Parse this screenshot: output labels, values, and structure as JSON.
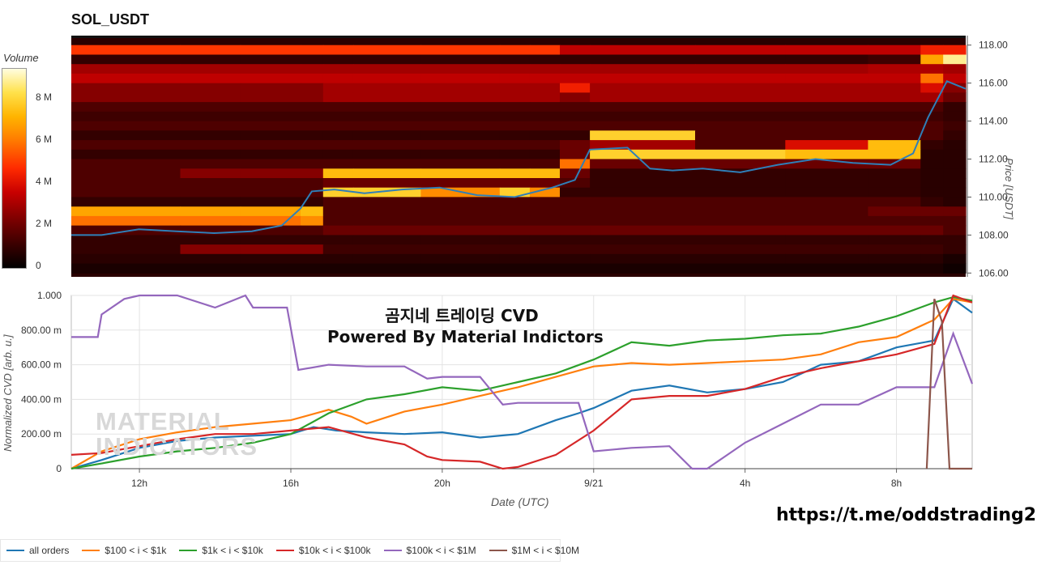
{
  "title": "SOL_USDT",
  "colorbar": {
    "title": "Volume",
    "ticks": [
      "8 M",
      "6 M",
      "4 M",
      "2 M",
      "0"
    ],
    "tick_values": [
      8,
      6,
      4,
      2,
      0
    ],
    "max": 9.6
  },
  "price_axis": {
    "title": "Price [USDT]",
    "ticks": [
      "118.00",
      "116.00",
      "114.00",
      "112.00",
      "110.00",
      "108.00",
      "106.00"
    ]
  },
  "cvd_axis": {
    "title": "Normalized CVD [arb. u.]",
    "ticks": [
      "1.000",
      "800.00 m",
      "600.00 m",
      "400.00 m",
      "200.00 m",
      "0"
    ]
  },
  "x_axis": {
    "title": "Date (UTC)",
    "ticks": [
      "12h",
      "16h",
      "20h",
      "9/21",
      "4h",
      "8h"
    ]
  },
  "overlay": {
    "line1": "곰지네 트레이딩 CVD",
    "line2": "Powered By Material Indictors"
  },
  "watermark": {
    "line1": "MATERIAL",
    "line2": "INDICATORS"
  },
  "footer_url": "https://t.me/oddstrading2",
  "legend": [
    {
      "label": "all orders",
      "color": "#1f77b4"
    },
    {
      "label": "$100 < i < $1k",
      "color": "#ff7f0e"
    },
    {
      "label": "$1k < i < $10k",
      "color": "#2ca02c"
    },
    {
      "label": "$10k < i < $100k",
      "color": "#d62728"
    },
    {
      "label": "$100k < i < $1M",
      "color": "#9467bd"
    },
    {
      "label": "$1M < i < $10M",
      "color": "#8c564b"
    }
  ],
  "chart_data": [
    {
      "type": "heatmap",
      "title": "SOL_USDT",
      "x_ticks": [
        "12h",
        "16h",
        "20h",
        "9/21",
        "4h",
        "8h"
      ],
      "x_range_hours": [
        10.2,
        34.0
      ],
      "y_range": [
        105.8,
        118.5
      ],
      "ylabel": "Price [USDT]",
      "color_scale": "black-red-yellow-white",
      "price_bands": [
        117.75,
        117.25,
        116.75,
        116.25,
        115.75,
        115.25,
        114.75,
        114.25,
        113.75,
        113.25,
        112.75,
        112.25,
        111.75,
        111.25,
        110.75,
        110.25,
        109.75,
        109.25,
        108.75,
        108.25,
        107.75,
        107.25,
        106.75,
        106.25
      ],
      "segments_hours": [
        10.2,
        13.1,
        14.7,
        16.3,
        16.9,
        17.7,
        19.5,
        21.6,
        22.4,
        23.2,
        24.0,
        26.8,
        29.2,
        31.4,
        32.8,
        33.4,
        34.0
      ],
      "volume_millions": [
        [
          5.0,
          5.0,
          5.0,
          5.0,
          5.0,
          5.0,
          5.0,
          5.0,
          5.0,
          3.5,
          3.5,
          3.5,
          3.5,
          3.5,
          4.5,
          4.5
        ],
        [
          1.0,
          1.0,
          1.0,
          1.0,
          1.0,
          1.0,
          1.0,
          1.0,
          1.0,
          1.0,
          1.0,
          1.0,
          1.0,
          1.2,
          7.0,
          9.0
        ],
        [
          3.0,
          3.0,
          3.0,
          3.0,
          3.0,
          3.0,
          3.0,
          3.0,
          3.0,
          3.0,
          3.0,
          3.0,
          3.0,
          3.2,
          3.2,
          3.0
        ],
        [
          3.5,
          3.5,
          3.5,
          3.5,
          3.5,
          3.5,
          3.5,
          3.5,
          3.5,
          3.5,
          3.5,
          3.5,
          3.5,
          3.5,
          6.0,
          3.5
        ],
        [
          2.5,
          2.5,
          2.5,
          2.5,
          3.0,
          3.0,
          3.0,
          3.0,
          3.0,
          4.5,
          3.0,
          3.0,
          3.0,
          3.0,
          4.0,
          2.5
        ],
        [
          2.5,
          2.5,
          2.5,
          2.5,
          3.0,
          3.0,
          3.0,
          3.0,
          3.0,
          2.5,
          3.0,
          3.0,
          3.0,
          3.0,
          3.0,
          2.0
        ],
        [
          1.5,
          1.5,
          1.5,
          1.5,
          1.5,
          1.5,
          1.5,
          1.5,
          1.5,
          1.5,
          1.5,
          1.5,
          1.5,
          1.5,
          1.5,
          1.0
        ],
        [
          1.2,
          1.2,
          1.2,
          1.2,
          1.2,
          1.2,
          1.2,
          1.2,
          1.2,
          1.2,
          1.2,
          1.2,
          1.2,
          1.2,
          1.2,
          1.0
        ],
        [
          1.5,
          1.5,
          1.5,
          1.5,
          1.5,
          1.5,
          1.5,
          1.5,
          1.5,
          1.5,
          1.5,
          1.5,
          1.5,
          1.5,
          1.5,
          1.2
        ],
        [
          1.0,
          1.0,
          1.0,
          1.0,
          1.0,
          1.0,
          1.0,
          1.0,
          1.0,
          1.0,
          8.0,
          1.5,
          1.5,
          1.5,
          1.5,
          1.0
        ],
        [
          1.5,
          1.5,
          1.5,
          1.5,
          1.5,
          1.5,
          1.5,
          1.5,
          1.5,
          2.0,
          3.0,
          1.5,
          4.0,
          7.5,
          1.0,
          0.8
        ],
        [
          1.0,
          1.0,
          1.0,
          1.0,
          1.0,
          1.0,
          1.0,
          1.0,
          1.0,
          2.0,
          8.0,
          8.0,
          7.5,
          7.5,
          0.8,
          0.8
        ],
        [
          1.5,
          1.5,
          1.5,
          1.5,
          1.5,
          1.5,
          1.5,
          1.5,
          1.5,
          6.0,
          2.0,
          2.0,
          2.0,
          2.0,
          0.8,
          0.8
        ],
        [
          1.5,
          2.5,
          2.5,
          2.5,
          7.5,
          7.5,
          7.5,
          7.5,
          7.5,
          2.0,
          1.0,
          1.0,
          1.0,
          1.0,
          0.8,
          0.8
        ],
        [
          1.5,
          1.5,
          1.5,
          1.5,
          2.0,
          2.0,
          2.0,
          2.0,
          2.0,
          1.5,
          1.0,
          1.0,
          1.0,
          1.0,
          0.8,
          0.8
        ],
        [
          1.5,
          1.5,
          1.5,
          1.5,
          8.0,
          8.0,
          6.5,
          8.0,
          6.5,
          1.0,
          1.0,
          1.0,
          1.0,
          1.0,
          0.8,
          0.8
        ],
        [
          1.0,
          1.0,
          1.0,
          1.0,
          1.5,
          1.5,
          1.5,
          1.5,
          1.5,
          1.5,
          1.5,
          1.5,
          1.5,
          1.5,
          1.0,
          0.8
        ],
        [
          7.0,
          7.0,
          7.0,
          7.5,
          1.5,
          1.5,
          1.5,
          1.5,
          1.5,
          1.5,
          1.5,
          1.5,
          1.5,
          2.0,
          2.0,
          2.0
        ],
        [
          6.0,
          6.0,
          6.0,
          6.5,
          1.5,
          1.5,
          1.5,
          1.5,
          1.5,
          1.5,
          1.5,
          1.5,
          1.5,
          1.5,
          1.5,
          1.5
        ],
        [
          1.5,
          1.5,
          1.5,
          1.5,
          2.0,
          2.0,
          2.0,
          2.0,
          2.0,
          2.0,
          2.0,
          2.0,
          2.0,
          2.0,
          2.0,
          1.5
        ],
        [
          1.0,
          1.0,
          1.0,
          1.0,
          1.0,
          1.0,
          1.0,
          1.0,
          1.0,
          1.0,
          1.0,
          1.0,
          1.0,
          1.0,
          1.0,
          1.0
        ],
        [
          1.0,
          2.5,
          2.5,
          2.5,
          1.2,
          1.2,
          1.2,
          1.2,
          1.2,
          1.2,
          1.2,
          1.2,
          1.2,
          1.2,
          1.2,
          1.0
        ],
        [
          0.8,
          0.8,
          0.8,
          0.8,
          0.8,
          0.8,
          0.8,
          0.8,
          0.8,
          0.8,
          0.8,
          0.8,
          0.8,
          0.8,
          0.8,
          0.5
        ],
        [
          0.5,
          0.5,
          0.5,
          0.5,
          0.5,
          0.5,
          0.5,
          0.5,
          0.5,
          0.5,
          0.5,
          0.5,
          0.5,
          0.5,
          0.5,
          0.3
        ]
      ],
      "price_line": {
        "name": "price",
        "x_hours": [
          10.2,
          11.0,
          12.0,
          13.0,
          14.0,
          15.0,
          15.8,
          16.3,
          16.6,
          17.2,
          18.0,
          19.0,
          20.0,
          21.0,
          22.0,
          23.0,
          23.6,
          24.0,
          25.0,
          25.6,
          26.2,
          27.0,
          28.0,
          29.0,
          30.0,
          31.0,
          32.0,
          32.6,
          33.0,
          33.5,
          34.0
        ],
        "price": [
          108.0,
          108.0,
          108.3,
          108.2,
          108.1,
          108.2,
          108.5,
          109.4,
          110.3,
          110.4,
          110.2,
          110.4,
          110.5,
          110.1,
          110.0,
          110.5,
          110.9,
          112.5,
          112.6,
          111.5,
          111.4,
          111.5,
          111.3,
          111.7,
          112.0,
          111.8,
          111.7,
          112.3,
          114.2,
          116.1,
          115.7
        ],
        "color": "#2f7fb8"
      }
    },
    {
      "type": "line",
      "xlabel": "Date (UTC)",
      "ylabel": "Normalized CVD [arb. u.]",
      "x_ticks": [
        "12h",
        "16h",
        "20h",
        "9/21",
        "4h",
        "8h"
      ],
      "x_range_hours": [
        10.2,
        34.0
      ],
      "ylim": [
        0,
        1
      ],
      "series": [
        {
          "name": "all orders",
          "color": "#1f77b4",
          "x": [
            10.2,
            11.0,
            12.0,
            13.0,
            14.0,
            15.0,
            16.0,
            16.6,
            17.2,
            18.0,
            19.0,
            20.0,
            21.0,
            22.0,
            23.0,
            23.6,
            24.0,
            25.0,
            26.0,
            27.0,
            28.0,
            29.0,
            30.0,
            31.0,
            32.0,
            33.0,
            33.5,
            34.0
          ],
          "y": [
            0.0,
            0.05,
            0.12,
            0.16,
            0.18,
            0.19,
            0.2,
            0.24,
            0.22,
            0.21,
            0.2,
            0.21,
            0.18,
            0.2,
            0.28,
            0.32,
            0.35,
            0.45,
            0.48,
            0.44,
            0.46,
            0.5,
            0.6,
            0.62,
            0.7,
            0.74,
            0.98,
            0.9
          ]
        },
        {
          "name": "$100 < i < $1k",
          "color": "#ff7f0e",
          "x": [
            10.2,
            11.0,
            12.0,
            13.0,
            14.0,
            15.0,
            16.0,
            17.0,
            17.6,
            18.0,
            19.0,
            20.0,
            21.0,
            22.0,
            23.0,
            24.0,
            25.0,
            26.0,
            27.0,
            28.0,
            29.0,
            30.0,
            31.0,
            32.0,
            33.0,
            33.5,
            34.0
          ],
          "y": [
            0.0,
            0.1,
            0.17,
            0.21,
            0.24,
            0.26,
            0.28,
            0.34,
            0.3,
            0.26,
            0.33,
            0.37,
            0.42,
            0.47,
            0.53,
            0.59,
            0.61,
            0.6,
            0.61,
            0.62,
            0.63,
            0.66,
            0.73,
            0.76,
            0.86,
            0.98,
            0.96
          ]
        },
        {
          "name": "$1k < i < $10k",
          "color": "#2ca02c",
          "x": [
            10.2,
            11.0,
            12.0,
            13.0,
            14.0,
            15.0,
            16.0,
            17.0,
            18.0,
            19.0,
            20.0,
            21.0,
            22.0,
            23.0,
            24.0,
            25.0,
            26.0,
            27.0,
            28.0,
            29.0,
            30.0,
            31.0,
            32.0,
            33.0,
            33.5,
            34.0
          ],
          "y": [
            0.0,
            0.03,
            0.07,
            0.1,
            0.12,
            0.15,
            0.2,
            0.32,
            0.4,
            0.43,
            0.47,
            0.45,
            0.5,
            0.55,
            0.63,
            0.73,
            0.71,
            0.74,
            0.75,
            0.77,
            0.78,
            0.82,
            0.88,
            0.96,
            0.99,
            0.97
          ]
        },
        {
          "name": "$10k < i < $100k",
          "color": "#d62728",
          "x": [
            10.2,
            11.0,
            12.0,
            13.0,
            14.0,
            15.0,
            16.0,
            17.0,
            18.0,
            19.0,
            19.6,
            20.0,
            21.0,
            21.6,
            22.0,
            23.0,
            24.0,
            25.0,
            26.0,
            27.0,
            28.0,
            29.0,
            30.0,
            31.0,
            32.0,
            33.0,
            33.5,
            34.0
          ],
          "y": [
            0.08,
            0.09,
            0.13,
            0.17,
            0.2,
            0.2,
            0.22,
            0.24,
            0.18,
            0.14,
            0.07,
            0.05,
            0.04,
            0.0,
            0.01,
            0.08,
            0.22,
            0.4,
            0.42,
            0.42,
            0.46,
            0.53,
            0.58,
            0.62,
            0.66,
            0.72,
            1.0,
            0.96
          ]
        },
        {
          "name": "$100k < i < $1M",
          "color": "#9467bd",
          "x": [
            10.2,
            10.9,
            11.0,
            11.6,
            12.0,
            13.0,
            14.0,
            14.8,
            15.0,
            15.9,
            16.2,
            17.0,
            18.0,
            19.0,
            19.6,
            20.0,
            21.0,
            21.6,
            22.0,
            23.0,
            23.6,
            24.0,
            25.0,
            26.0,
            26.6,
            27.0,
            28.0,
            29.0,
            30.0,
            31.0,
            32.0,
            32.6,
            33.0,
            33.5,
            34.0
          ],
          "y": [
            0.76,
            0.76,
            0.89,
            0.98,
            1.0,
            1.0,
            0.93,
            1.0,
            0.93,
            0.93,
            0.57,
            0.6,
            0.59,
            0.59,
            0.52,
            0.53,
            0.53,
            0.37,
            0.38,
            0.38,
            0.38,
            0.1,
            0.12,
            0.13,
            0.0,
            0.0,
            0.15,
            0.26,
            0.37,
            0.37,
            0.47,
            0.47,
            0.47,
            0.78,
            0.49
          ]
        },
        {
          "name": "$1M < i < $10M",
          "color": "#8c564b",
          "x": [
            32.8,
            33.0,
            33.2,
            33.4,
            33.6,
            34.0
          ],
          "y": [
            0.0,
            0.98,
            0.85,
            0.0,
            0.0,
            0.0
          ]
        }
      ]
    }
  ]
}
